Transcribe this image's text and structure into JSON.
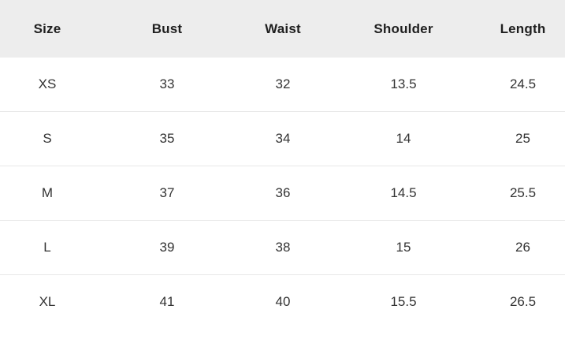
{
  "table": {
    "title": "size-chart",
    "headers": [
      "Size",
      "Bust",
      "Waist",
      "Shoulder",
      "Length"
    ],
    "rows": [
      [
        "XS",
        "33",
        "32",
        "13.5",
        "24.5"
      ],
      [
        "S",
        "35",
        "34",
        "14",
        "25"
      ],
      [
        "M",
        "37",
        "36",
        "14.5",
        "25.5"
      ],
      [
        "L",
        "39",
        "38",
        "15",
        "26"
      ],
      [
        "XL",
        "41",
        "40",
        "15.5",
        "26.5"
      ]
    ],
    "colors": {
      "header_background": "#ededed",
      "row_background": "#ffffff",
      "divider": "#e7e7e7",
      "header_text": "#1f1f1f",
      "cell_text": "#333333"
    }
  }
}
